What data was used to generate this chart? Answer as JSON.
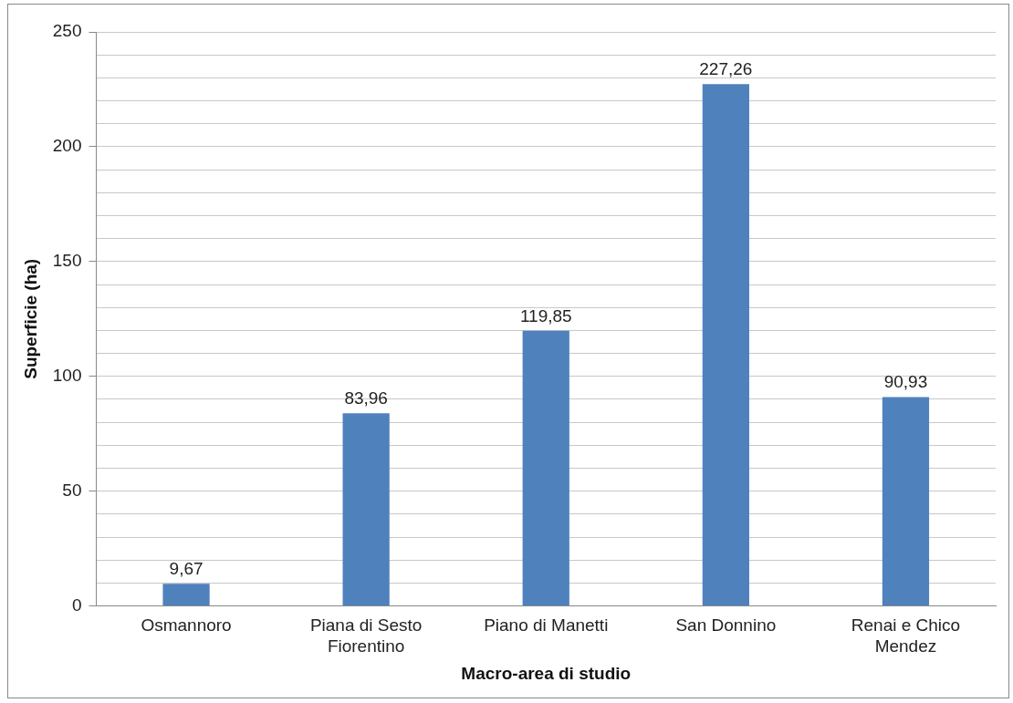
{
  "chart_data": {
    "type": "bar",
    "xlabel": "Macro-area di studio",
    "ylabel": "Superficie (ha)",
    "categories": [
      "Osmannoro",
      "Piana di Sesto Fiorentino",
      "Piano di Manetti",
      "San Donnino",
      "Renai e Chico Mendez"
    ],
    "values": [
      9.67,
      83.96,
      119.85,
      227.26,
      90.93
    ],
    "value_labels": [
      "9,67",
      "83,96",
      "119,85",
      "227,26",
      "90,93"
    ],
    "color": "#4f81bd",
    "ylim": [
      0,
      250
    ],
    "yticks": [
      0,
      {
        "value": 10,
        "label": null
      },
      {
        "value": 20,
        "label": null
      },
      {
        "value": 30,
        "label": null
      },
      {
        "value": 40,
        "label": null
      },
      50,
      {
        "value": 60,
        "label": null
      },
      {
        "value": 70,
        "label": null
      },
      {
        "value": 80,
        "label": null
      },
      {
        "value": 90,
        "label": null
      },
      100,
      {
        "value": 110,
        "label": null
      },
      {
        "value": 120,
        "label": null
      },
      {
        "value": 130,
        "label": null
      },
      {
        "value": 140,
        "label": null
      },
      150,
      {
        "value": 160,
        "label": null
      },
      {
        "value": 170,
        "label": null
      },
      {
        "value": 180,
        "label": null
      },
      {
        "value": 190,
        "label": null
      },
      200,
      {
        "value": 210,
        "label": null
      },
      {
        "value": 220,
        "label": null
      },
      {
        "value": 230,
        "label": null
      },
      {
        "value": 240,
        "label": null
      },
      250
    ],
    "grid": "y",
    "legend": false
  }
}
